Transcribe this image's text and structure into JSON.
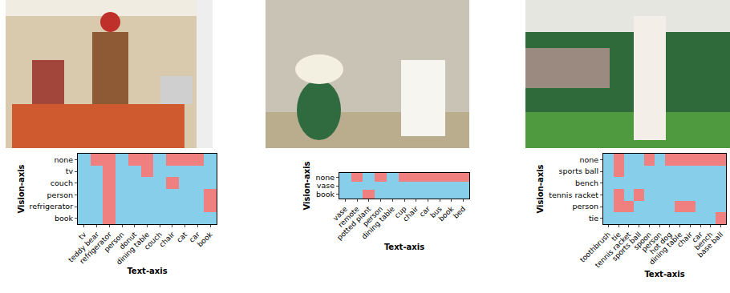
{
  "chart_data": [
    {
      "type": "heatmap",
      "xlabel": "Text-axis",
      "ylabel": "Vision-axis",
      "x": [
        "tv",
        "teddy bear",
        "refrigerator",
        "person",
        "donut",
        "dining table",
        "couch",
        "chair",
        "cat",
        "car",
        "book"
      ],
      "y": [
        "none",
        "tv",
        "couch",
        "person",
        "refrigerator",
        "book"
      ],
      "cells": [
        [
          0,
          1,
          1,
          0,
          1,
          1,
          0,
          1,
          1,
          1,
          0
        ],
        [
          0,
          0,
          1,
          0,
          0,
          1,
          0,
          0,
          0,
          0,
          0
        ],
        [
          0,
          0,
          1,
          0,
          0,
          0,
          0,
          1,
          0,
          0,
          0
        ],
        [
          0,
          0,
          1,
          0,
          0,
          0,
          0,
          0,
          0,
          0,
          1
        ],
        [
          0,
          0,
          1,
          0,
          0,
          0,
          0,
          0,
          0,
          0,
          1
        ],
        [
          0,
          0,
          1,
          0,
          0,
          0,
          0,
          0,
          0,
          0,
          0
        ]
      ],
      "colors": [
        "#87ceeb",
        "#f08080"
      ]
    },
    {
      "type": "heatmap",
      "xlabel": "Text-axis",
      "ylabel": "Vision-axis",
      "x": [
        "vase",
        "remote",
        "potted plant",
        "person",
        "dining table",
        "cup",
        "chair",
        "car",
        "bus",
        "book",
        "bed"
      ],
      "y": [
        "none",
        "vase",
        "book"
      ],
      "cells": [
        [
          0,
          1,
          0,
          1,
          0,
          1,
          1,
          1,
          1,
          1,
          1
        ],
        [
          0,
          0,
          0,
          0,
          0,
          0,
          0,
          0,
          0,
          0,
          0
        ],
        [
          0,
          0,
          1,
          0,
          0,
          0,
          0,
          0,
          0,
          0,
          0
        ]
      ],
      "colors": [
        "#87ceeb",
        "#f08080"
      ]
    },
    {
      "type": "heatmap",
      "xlabel": "Text-axis",
      "ylabel": "Vision-axis",
      "x": [
        "toothbrush",
        "tie",
        "tennis racket",
        "sports ball",
        "spoon",
        "person",
        "hot dog",
        "dining table",
        "chair",
        "car",
        "bench",
        "base ball"
      ],
      "y": [
        "none",
        "sports ball",
        "bench",
        "tennis racket",
        "person",
        "tie"
      ],
      "cells": [
        [
          0,
          1,
          0,
          0,
          1,
          0,
          1,
          1,
          1,
          1,
          1,
          1
        ],
        [
          0,
          1,
          0,
          0,
          0,
          0,
          0,
          0,
          0,
          0,
          0,
          0
        ],
        [
          0,
          0,
          0,
          0,
          0,
          0,
          0,
          0,
          0,
          0,
          0,
          0
        ],
        [
          0,
          1,
          0,
          1,
          0,
          0,
          0,
          0,
          0,
          0,
          0,
          0
        ],
        [
          0,
          1,
          1,
          0,
          0,
          0,
          0,
          1,
          1,
          0,
          0,
          0
        ],
        [
          0,
          0,
          0,
          0,
          0,
          0,
          0,
          0,
          0,
          0,
          0,
          1
        ]
      ],
      "colors": [
        "#87ceeb",
        "#f08080"
      ]
    }
  ]
}
